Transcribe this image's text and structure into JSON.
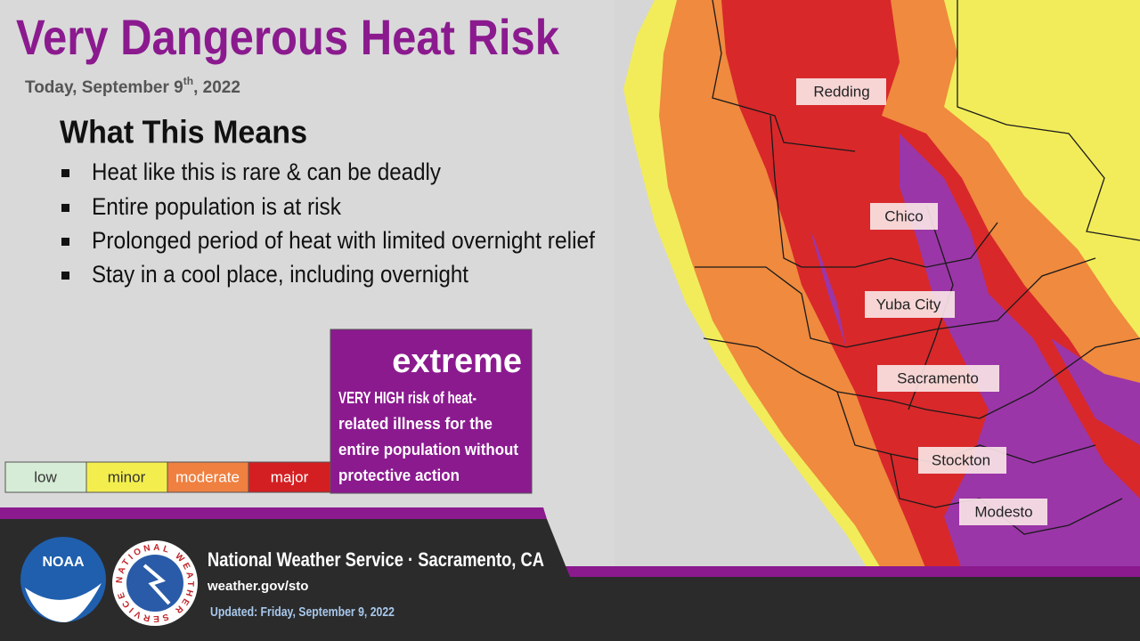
{
  "header": {
    "title": "Very Dangerous Heat Risk",
    "date_parts": [
      "Today, September 9",
      "th",
      ", 2022"
    ]
  },
  "meaning": {
    "heading": "What This Means",
    "bullets": [
      "Heat like this is rare & can be deadly",
      "Entire population is at risk",
      "Prolonged period of heat with limited overnight relief",
      "Stay in a cool place, including overnight"
    ]
  },
  "legend": {
    "levels": [
      "low",
      "minor",
      "moderate",
      "major"
    ],
    "extreme": {
      "label": "extreme",
      "description_lines": [
        "VERY HIGH risk of heat-",
        "related illness for the",
        "entire population without",
        "protective action"
      ]
    }
  },
  "map": {
    "cities": [
      "Redding",
      "Chico",
      "Yuba City",
      "Sacramento",
      "Stockton",
      "Modesto"
    ]
  },
  "footer": {
    "office": "National Weather Service · Sacramento, CA",
    "url": "weather.gov/sto",
    "updated": "Updated: Friday, September 9, 2022",
    "logos": [
      "NOAA",
      "NATIONAL WEATHER SERVICE"
    ]
  }
}
